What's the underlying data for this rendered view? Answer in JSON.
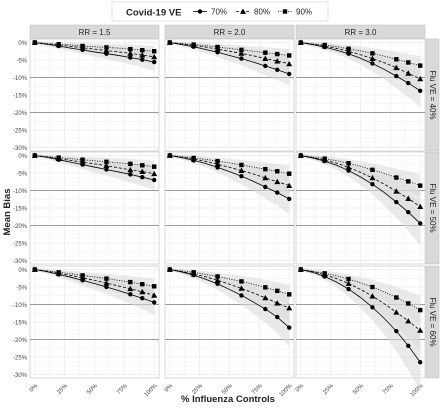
{
  "chart_data": {
    "type": "line",
    "title": "",
    "ylabel": "Mean Bias",
    "xlabel": "% Influenza Controls",
    "x_categories": [
      "0%",
      "25%",
      "50%",
      "75%",
      "100%"
    ],
    "x": [
      0,
      10,
      20,
      30,
      40,
      50,
      60,
      70,
      80,
      90,
      100
    ],
    "y_ticks": [
      "0%",
      "-5%",
      "-10%",
      "-15%",
      "-20%",
      "-25%",
      "-30%"
    ],
    "ylim": [
      -31,
      1
    ],
    "legend": {
      "title": "Covid-19 VE",
      "position": "top",
      "entries": [
        {
          "label": "70%",
          "marker": "circle",
          "dash": "solid"
        },
        {
          "label": "80%",
          "marker": "triangle",
          "dash": "dashed"
        },
        {
          "label": "90%",
          "marker": "square",
          "dash": "dotted"
        }
      ]
    },
    "columns": [
      "RR = 1.5",
      "RR = 2.0",
      "RR = 3.0"
    ],
    "rows": [
      "Flu VE = 40%",
      "Flu VE = 50%",
      "Flu VE = 60%"
    ],
    "colors": {
      "line": "#000000",
      "ribbon": "#d9d9d9",
      "strip": "#d9d9d9",
      "grid": "#ebebeb",
      "zero_line": "#7f7f7f"
    },
    "panels": [
      {
        "row": 0,
        "col": 0,
        "series": [
          {
            "name": "70%",
            "values": [
              0,
              -0.5,
              -1,
              -1.6,
              -2.1,
              -2.7,
              -3.2,
              -3.7,
              -4.3,
              -4.9,
              -5.6
            ],
            "band": [
              3,
              2,
              1,
              1.5
            ]
          },
          {
            "name": "80%",
            "values": [
              0,
              -0.4,
              -0.7,
              -1.1,
              -1.5,
              -1.9,
              -2.3,
              -2.7,
              -3.1,
              -3.6,
              -4.1
            ],
            "band": [
              3,
              2,
              1,
              1.5
            ]
          },
          {
            "name": "90%",
            "values": [
              0,
              -0.3,
              -0.5,
              -0.7,
              -1.0,
              -1.2,
              -1.4,
              -1.6,
              -1.9,
              -2.2,
              -2.5
            ],
            "band": [
              3,
              2,
              1,
              1.5
            ]
          }
        ]
      },
      {
        "row": 0,
        "col": 1,
        "series": [
          {
            "name": "70%",
            "values": [
              0,
              -0.6,
              -1.2,
              -2,
              -2.8,
              -3.7,
              -4.6,
              -5.6,
              -6.7,
              -7.8,
              -9
            ],
            "band": [
              3,
              2,
              1,
              1.5
            ]
          },
          {
            "name": "80%",
            "values": [
              0,
              -0.4,
              -0.8,
              -1.3,
              -1.9,
              -2.5,
              -3.1,
              -3.8,
              -4.6,
              -5.3,
              -6.1
            ],
            "band": [
              3,
              2,
              1,
              1.5
            ]
          },
          {
            "name": "90%",
            "values": [
              0,
              -0.3,
              -0.6,
              -0.9,
              -1.3,
              -1.7,
              -2.1,
              -2.5,
              -2.9,
              -3.3,
              -3.7
            ],
            "band": [
              3,
              2,
              1,
              1.5
            ]
          }
        ]
      },
      {
        "row": 0,
        "col": 2,
        "series": [
          {
            "name": "70%",
            "values": [
              0,
              -0.6,
              -1.3,
              -2.2,
              -3.2,
              -4.5,
              -6,
              -7.7,
              -9.6,
              -11.6,
              -13.8
            ],
            "band": [
              3,
              2,
              1,
              1.5
            ]
          },
          {
            "name": "80%",
            "values": [
              0,
              -0.5,
              -1,
              -1.7,
              -2.5,
              -3.5,
              -4.6,
              -5.8,
              -7.2,
              -8.8,
              -10.4
            ],
            "band": [
              3,
              2,
              1,
              1.5
            ]
          },
          {
            "name": "90%",
            "values": [
              0,
              -0.4,
              -0.7,
              -1.2,
              -1.8,
              -2.4,
              -3.1,
              -3.9,
              -4.8,
              -5.7,
              -6.6
            ],
            "band": [
              3,
              2,
              1,
              1.5
            ]
          }
        ]
      },
      {
        "row": 1,
        "col": 0,
        "series": [
          {
            "name": "70%",
            "values": [
              0,
              -0.5,
              -1.2,
              -1.9,
              -2.6,
              -3.3,
              -4,
              -4.7,
              -5.4,
              -6.2,
              -7
            ],
            "band": [
              3,
              2,
              1,
              1.5
            ]
          },
          {
            "name": "80%",
            "values": [
              0,
              -0.4,
              -0.9,
              -1.4,
              -1.9,
              -2.4,
              -2.9,
              -3.5,
              -4.1,
              -4.6,
              -5.2
            ],
            "band": [
              3,
              2,
              1,
              1.5
            ]
          },
          {
            "name": "90%",
            "values": [
              0,
              -0.3,
              -0.6,
              -0.9,
              -1.2,
              -1.5,
              -1.8,
              -2.1,
              -2.4,
              -2.8,
              -3.2
            ],
            "band": [
              3,
              2,
              1,
              1.5
            ]
          }
        ]
      },
      {
        "row": 1,
        "col": 1,
        "series": [
          {
            "name": "70%",
            "values": [
              0,
              -0.6,
              -1.4,
              -2.3,
              -3.4,
              -4.6,
              -5.9,
              -7.4,
              -9,
              -10.6,
              -12.4
            ],
            "band": [
              3,
              2,
              1,
              1.5
            ]
          },
          {
            "name": "80%",
            "values": [
              0,
              -0.5,
              -1,
              -1.7,
              -2.5,
              -3.4,
              -4.3,
              -5.3,
              -6.4,
              -7.5,
              -8.6
            ],
            "band": [
              3,
              2,
              1,
              1.5
            ]
          },
          {
            "name": "90%",
            "values": [
              0,
              -0.3,
              -0.7,
              -1.1,
              -1.6,
              -2.1,
              -2.7,
              -3.3,
              -3.9,
              -4.5,
              -5.2
            ],
            "band": [
              3,
              2,
              1,
              1.5
            ]
          }
        ]
      },
      {
        "row": 1,
        "col": 2,
        "series": [
          {
            "name": "70%",
            "values": [
              0,
              -0.7,
              -1.6,
              -2.8,
              -4.3,
              -6.1,
              -8.2,
              -10.6,
              -13.3,
              -16.2,
              -19.4
            ],
            "band": [
              3,
              2,
              1,
              1.5
            ]
          },
          {
            "name": "80%",
            "values": [
              0,
              -0.6,
              -1.3,
              -2.2,
              -3.4,
              -4.8,
              -6.4,
              -8.2,
              -10.2,
              -12.3,
              -14.6
            ],
            "band": [
              3,
              2,
              1,
              1.5
            ]
          },
          {
            "name": "90%",
            "values": [
              0,
              -0.4,
              -0.9,
              -1.5,
              -2.2,
              -3.1,
              -4.1,
              -5.1,
              -6.3,
              -7.4,
              -8.6
            ],
            "band": [
              3,
              2,
              1,
              1.5
            ]
          }
        ]
      },
      {
        "row": 2,
        "col": 0,
        "series": [
          {
            "name": "70%",
            "values": [
              0,
              -0.6,
              -1.4,
              -2.2,
              -3.1,
              -4,
              -5,
              -6,
              -7.1,
              -8.2,
              -9.4
            ],
            "band": [
              3,
              2,
              1,
              1.5
            ]
          },
          {
            "name": "80%",
            "values": [
              0,
              -0.5,
              -1.1,
              -1.7,
              -2.4,
              -3.1,
              -3.9,
              -4.7,
              -5.5,
              -6.4,
              -7.4
            ],
            "band": [
              3,
              2,
              1,
              1.5
            ]
          },
          {
            "name": "90%",
            "values": [
              0,
              -0.4,
              -0.8,
              -1.2,
              -1.7,
              -2.1,
              -2.6,
              -3.1,
              -3.6,
              -4.2,
              -4.8
            ],
            "band": [
              3,
              2,
              1,
              1.5
            ]
          }
        ]
      },
      {
        "row": 2,
        "col": 1,
        "series": [
          {
            "name": "70%",
            "values": [
              0,
              -0.7,
              -1.6,
              -2.8,
              -4.1,
              -5.7,
              -7.4,
              -9.3,
              -11.3,
              -13.6,
              -16.6
            ],
            "band": [
              3,
              2,
              1,
              1.5
            ]
          },
          {
            "name": "80%",
            "values": [
              0,
              -0.6,
              -1.3,
              -2.1,
              -3.1,
              -4.2,
              -5.4,
              -6.7,
              -8.1,
              -9.6,
              -11
            ],
            "band": [
              3,
              2,
              1,
              1.5
            ]
          },
          {
            "name": "90%",
            "values": [
              0,
              -0.4,
              -0.8,
              -1.4,
              -2,
              -2.7,
              -3.4,
              -4.2,
              -5.1,
              -6.1,
              -7.1
            ],
            "band": [
              3,
              2,
              1,
              1.5
            ]
          }
        ]
      },
      {
        "row": 2,
        "col": 2,
        "series": [
          {
            "name": "70%",
            "values": [
              0,
              -0.8,
              -2,
              -3.6,
              -5.6,
              -8,
              -10.8,
              -14,
              -17.6,
              -21.8,
              -26.5
            ],
            "band": [
              3,
              2,
              1,
              1.5
            ]
          },
          {
            "name": "80%",
            "values": [
              0,
              -0.6,
              -1.5,
              -2.6,
              -4,
              -5.7,
              -7.6,
              -9.8,
              -12.2,
              -14.7,
              -17.4
            ],
            "band": [
              3,
              2,
              1,
              1.5
            ]
          },
          {
            "name": "90%",
            "values": [
              0,
              -0.5,
              -1.1,
              -1.8,
              -2.7,
              -3.8,
              -5,
              -6.4,
              -8,
              -9.7,
              -11.6
            ],
            "band": [
              3,
              2,
              1,
              1.5
            ]
          }
        ]
      }
    ]
  }
}
